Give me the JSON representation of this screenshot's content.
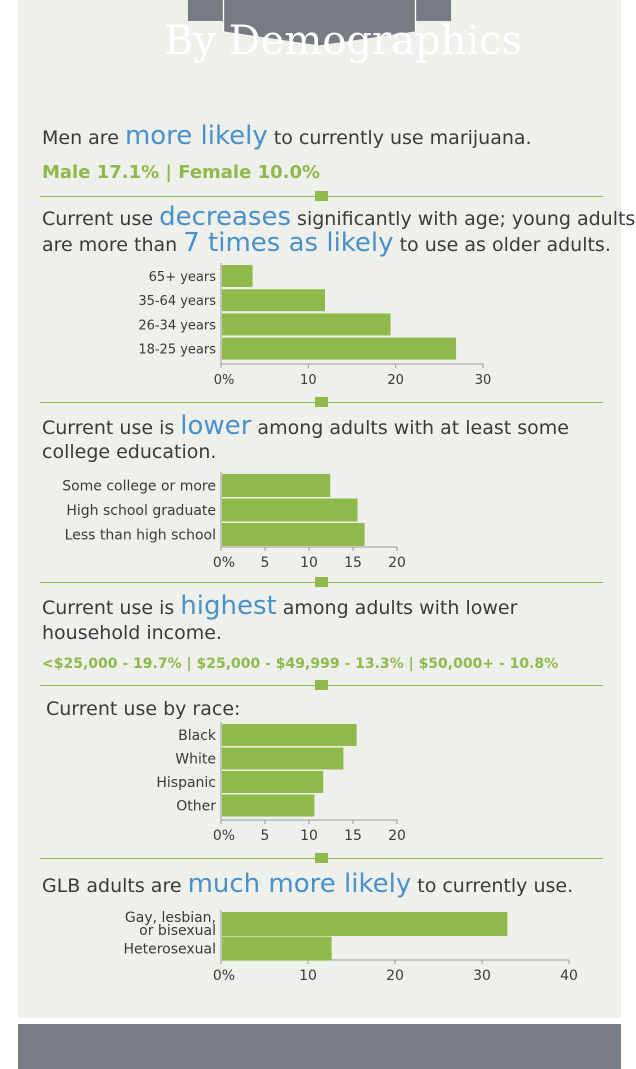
{
  "title": "By Demographics",
  "colors": {
    "bar": "#8fb94b",
    "highlight": "#4a90c9",
    "banner": "#777c82",
    "panel": "#eef0ec"
  },
  "gender": {
    "pre": "Men are ",
    "hl": "more likely",
    "post": " to currently use marijuana.",
    "stats": "Male 17.1%  |  Female 10.0%"
  },
  "age": {
    "line1_pre": "Current use ",
    "line1_hl": "decreases",
    "line1_post": " significantly with age; young adults",
    "line2_pre": "are more than ",
    "line2_hl": "7 times as likely",
    "line2_post": " to use as older adults."
  },
  "education": {
    "line1_pre": "Current use is ",
    "line1_hl": "lower",
    "line1_post": " among adults with at least some",
    "line2": "college education."
  },
  "income": {
    "line1_pre": "Current use is ",
    "line1_hl": "highest",
    "line1_post": " among adults with lower",
    "line2": "household income.",
    "stats": "<$25,000 - 19.7%  |  $25,000 - $49,999 - 13.3%  |  $50,000+ - 10.8%"
  },
  "race": {
    "heading": "Current use by race:"
  },
  "glb": {
    "pre": "GLB adults are ",
    "hl": "much more likely",
    "post": " to currently use."
  },
  "chart_data": [
    {
      "type": "bar",
      "orientation": "horizontal",
      "categories": [
        "65+ years",
        "35-64 years",
        "26-34 years",
        "18-25 years"
      ],
      "values": [
        3.5,
        11.8,
        19.3,
        26.8
      ],
      "xlim": [
        0,
        30
      ],
      "xticks": [
        "0%",
        "10",
        "20",
        "30"
      ]
    },
    {
      "type": "bar",
      "orientation": "horizontal",
      "categories": [
        "Some college or more",
        "High school graduate",
        "Less than high school"
      ],
      "values": [
        12.3,
        15.4,
        16.2
      ],
      "xlim": [
        0,
        20
      ],
      "xticks": [
        "0%",
        "5",
        "10",
        "15",
        "20"
      ]
    },
    {
      "type": "bar",
      "orientation": "horizontal",
      "categories": [
        "Black",
        "White",
        "Hispanic",
        "Other"
      ],
      "values": [
        15.3,
        13.8,
        11.5,
        10.5
      ],
      "xlim": [
        0,
        20
      ],
      "xticks": [
        "0%",
        "5",
        "10",
        "15",
        "20"
      ]
    },
    {
      "type": "bar",
      "orientation": "horizontal",
      "categories": [
        "Gay, lesbian, or bisexual",
        "Heterosexual"
      ],
      "values": [
        32.8,
        12.6
      ],
      "xlim": [
        0,
        40
      ],
      "xticks": [
        "0%",
        "10",
        "20",
        "30",
        "40"
      ]
    }
  ]
}
